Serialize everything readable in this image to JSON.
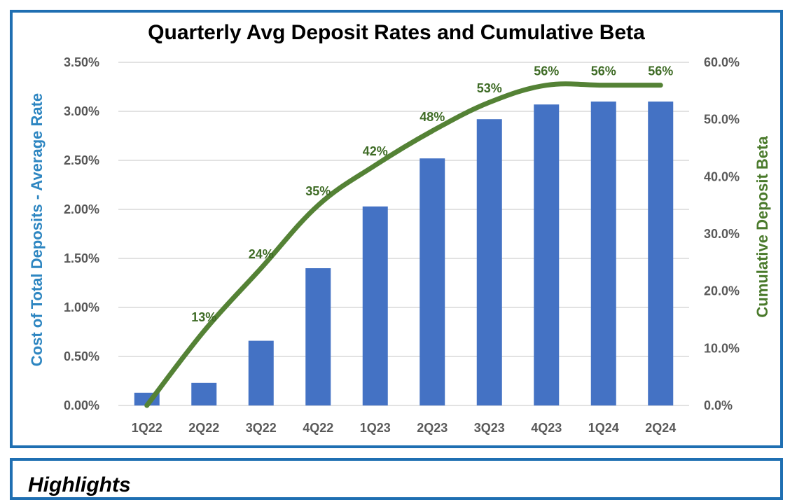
{
  "chart_data": {
    "type": "bar",
    "title": "Quarterly Avg Deposit Rates and Cumulative Beta",
    "categories": [
      "1Q22",
      "2Q22",
      "3Q22",
      "4Q22",
      "1Q23",
      "2Q23",
      "3Q23",
      "4Q23",
      "1Q24",
      "2Q24"
    ],
    "series": [
      {
        "type": "bar",
        "axis": "left",
        "color": "#4472c4",
        "values": [
          0.13,
          0.23,
          0.66,
          1.4,
          2.03,
          2.52,
          2.92,
          3.07,
          3.1,
          3.1
        ]
      },
      {
        "type": "line",
        "axis": "right",
        "color": "#548235",
        "values": [
          0,
          13,
          24,
          35,
          42,
          48,
          53,
          56,
          56,
          56
        ],
        "data_labels": [
          "",
          "13%",
          "24%",
          "35%",
          "42%",
          "48%",
          "53%",
          "56%",
          "56%",
          "56%"
        ]
      }
    ],
    "ylabel": "Cost of Total Deposits - Average Rate",
    "y2label": "Cumulative Deposit Beta",
    "ylim": [
      0,
      3.5
    ],
    "y2lim": [
      0,
      60
    ],
    "yticks": [
      "0.00%",
      "0.50%",
      "1.00%",
      "1.50%",
      "2.00%",
      "2.50%",
      "3.00%",
      "3.50%"
    ],
    "y2ticks": [
      "0.0%",
      "10.0%",
      "20.0%",
      "30.0%",
      "40.0%",
      "50.0%",
      "60.0%"
    ],
    "grid": true,
    "legend": "none"
  },
  "highlights": {
    "title": "Highlights"
  }
}
